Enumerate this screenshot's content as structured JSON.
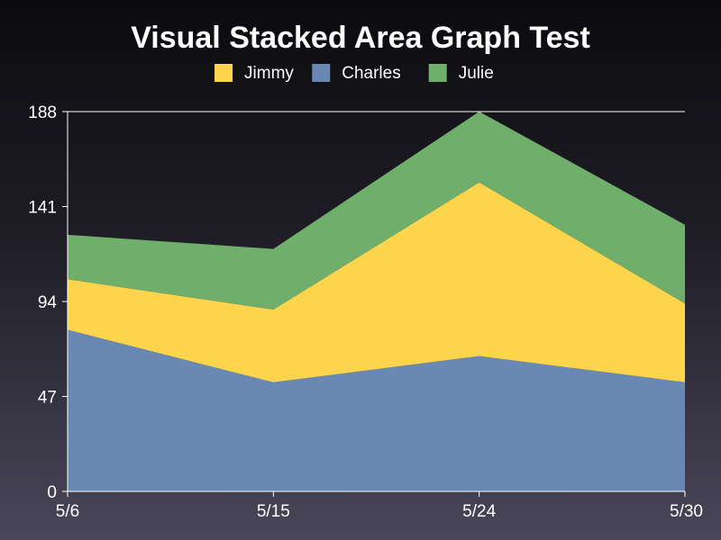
{
  "chart_data": {
    "type": "area",
    "stacked": true,
    "title": "Visual Stacked Area Graph Test",
    "categories": [
      "5/6",
      "5/15",
      "5/24",
      "5/30"
    ],
    "series": [
      {
        "name": "Charles",
        "color": "#6a88b4",
        "values": [
          80,
          54,
          67,
          54
        ]
      },
      {
        "name": "Jimmy",
        "color": "#fdd54d",
        "values": [
          25,
          36,
          86,
          39
        ]
      },
      {
        "name": "Julie",
        "color": "#70ae6c",
        "values": [
          22,
          30,
          35,
          39
        ]
      }
    ],
    "legend_order": [
      "Jimmy",
      "Charles",
      "Julie"
    ],
    "ylim": [
      0,
      188
    ],
    "yticks": [
      0,
      47,
      94,
      141,
      188
    ],
    "xlabel": "",
    "ylabel": "",
    "grid": false,
    "legend_position": "top"
  }
}
